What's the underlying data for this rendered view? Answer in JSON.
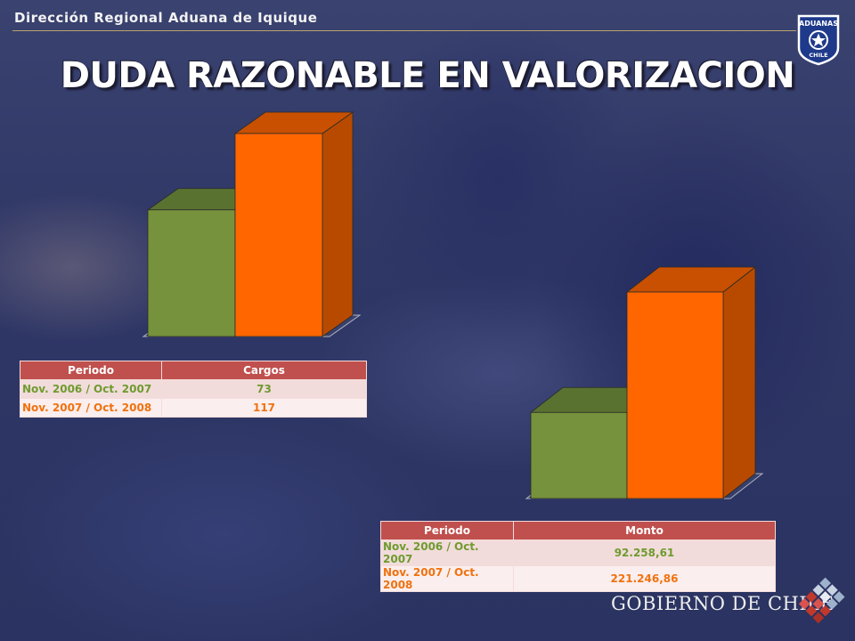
{
  "header": {
    "title": "Dirección Regional Aduana de Iquique"
  },
  "slide": {
    "title": "DUDA RAZONABLE EN VALORIZACION"
  },
  "logos": {
    "aduanas": {
      "text_top": "ADUANAS",
      "text_bottom": "CHILE"
    },
    "gobierno": {
      "text": "GOBIERNO DE CHILE"
    }
  },
  "colors": {
    "series_green": "#76923c",
    "series_orange": "#ff6600",
    "table_header": "#c0504d"
  },
  "chart_data": [
    {
      "type": "bar",
      "style": "3d",
      "categories": [
        "Nov. 2006 / Oct. 2007",
        "Nov. 2007 / Oct. 2008"
      ],
      "values": [
        73,
        117
      ],
      "ylim": [
        0,
        117
      ],
      "grid": false,
      "table": {
        "headers": [
          "Periodo",
          "Cargos"
        ],
        "rows": [
          [
            "Nov. 2006 / Oct. 2007",
            "73"
          ],
          [
            "Nov. 2007 / Oct. 2008",
            "117"
          ]
        ]
      }
    },
    {
      "type": "bar",
      "style": "3d",
      "categories": [
        "Nov. 2006 / Oct. 2007",
        "Nov. 2007 / Oct. 2008"
      ],
      "values": [
        92258.61,
        221246.86
      ],
      "ylim": [
        0,
        221246.86
      ],
      "grid": false,
      "table": {
        "headers": [
          "Periodo",
          "Monto"
        ],
        "rows": [
          [
            "Nov. 2006 / Oct. 2007",
            "92.258,61"
          ],
          [
            "Nov. 2007 / Oct. 2008",
            "221.246,86"
          ]
        ]
      }
    }
  ]
}
